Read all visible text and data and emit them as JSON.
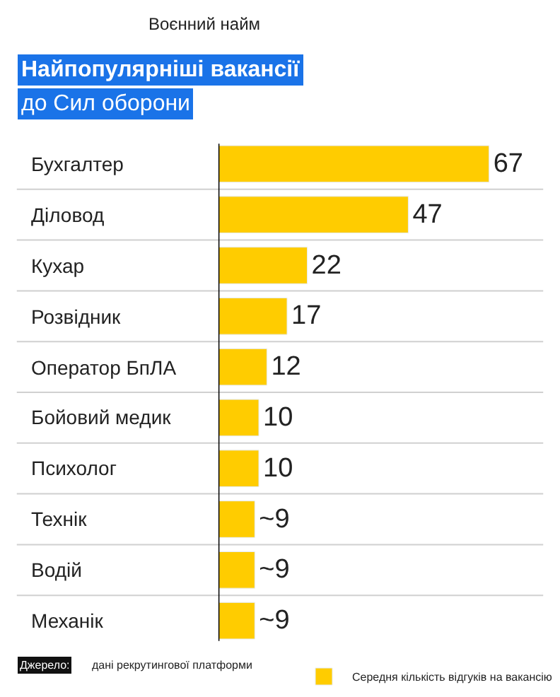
{
  "chart_data": {
    "type": "bar",
    "orientation": "horizontal",
    "subtitle": "Воєнний найм",
    "title": "Найпопулярніші вакансії\nдо Сил оборони",
    "categories": [
      "Бухгалтер",
      "Діловод",
      "Кухар",
      "Розвідник",
      "Оператор БпЛА",
      "Бойовий медик",
      "Психолог",
      "Технік",
      "Водій",
      "Механік"
    ],
    "series": [
      {
        "name": "Середня кількість відгуків на вакансію",
        "color": "#ffcc00",
        "values": [
          67,
          47,
          22,
          17,
          12,
          10,
          10,
          9,
          9,
          9
        ],
        "value_labels": [
          "67",
          "47",
          "22",
          "17",
          "12",
          "10",
          "10",
          "~9",
          "~9",
          "~9"
        ]
      }
    ],
    "legend": "bottom right",
    "annotations": [
      "Джерело: дані рекрутингової платформи"
    ]
  }
}
